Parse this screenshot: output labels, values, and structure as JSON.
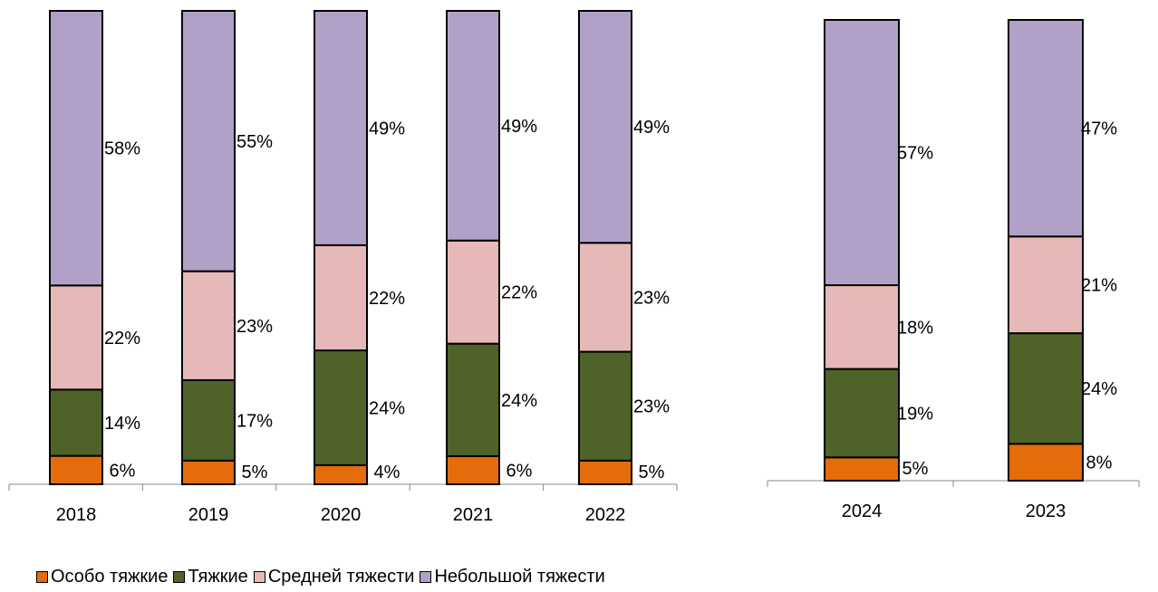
{
  "legend": {
    "items": [
      {
        "label": "Особо тяжкие",
        "color": "#e46c0a"
      },
      {
        "label": "Тяжкие",
        "color": "#4f6228"
      },
      {
        "label": "Средней тяжести",
        "color": "#e6b9b8"
      },
      {
        "label": "Небольшой тяжести",
        "color": "#b2a1c7"
      }
    ]
  },
  "chart_data": [
    {
      "type": "bar",
      "stacked": true,
      "percent": true,
      "categories": [
        "2018",
        "2019",
        "2020",
        "2021",
        "2022"
      ],
      "series": [
        {
          "name": "Особо тяжкие",
          "values": [
            6,
            5,
            4,
            6,
            5
          ],
          "labels": [
            "6%",
            "5%",
            "4%",
            "6%",
            "5%"
          ],
          "color": "#e46c0a"
        },
        {
          "name": "Тяжкие",
          "values": [
            14,
            17,
            24,
            24,
            23
          ],
          "labels": [
            "14%",
            "17%",
            "24%",
            "24%",
            "23%"
          ],
          "color": "#4f6228"
        },
        {
          "name": "Средней тяжести",
          "values": [
            22,
            23,
            22,
            22,
            23
          ],
          "labels": [
            "22%",
            "23%",
            "22%",
            "22%",
            "23%"
          ],
          "color": "#e6b9b8"
        },
        {
          "name": "Небольшой тяжести",
          "values": [
            58,
            55,
            49,
            49,
            49
          ],
          "labels": [
            "58%",
            "55%",
            "49%",
            "49%",
            "49%"
          ],
          "color": "#b2a1c7"
        }
      ],
      "ylim": [
        0,
        100
      ],
      "grid": false,
      "legend_position": "bottom"
    },
    {
      "type": "bar",
      "stacked": true,
      "percent": true,
      "categories": [
        "2024",
        "2023"
      ],
      "series": [
        {
          "name": "Особо тяжкие",
          "values": [
            5,
            8
          ],
          "labels": [
            "5%",
            "8%"
          ],
          "color": "#e46c0a"
        },
        {
          "name": "Тяжкие",
          "values": [
            19,
            24
          ],
          "labels": [
            "19%",
            "24%"
          ],
          "color": "#4f6228"
        },
        {
          "name": "Средней тяжести",
          "values": [
            18,
            21
          ],
          "labels": [
            "18%",
            "21%"
          ],
          "color": "#e6b9b8"
        },
        {
          "name": "Небольшой тяжести",
          "values": [
            57,
            47
          ],
          "labels": [
            "57%",
            "47%"
          ],
          "color": "#b2a1c7"
        }
      ],
      "ylim": [
        0,
        100
      ],
      "grid": false,
      "legend_position": "bottom"
    }
  ]
}
